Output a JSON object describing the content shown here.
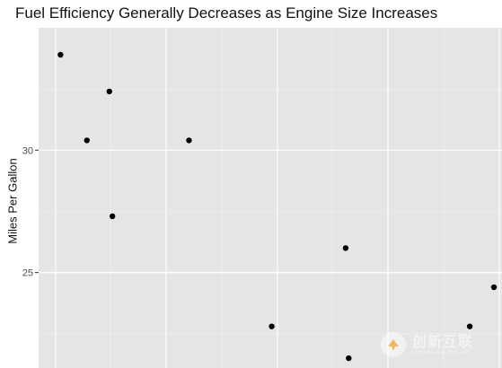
{
  "chart_data": {
    "type": "scatter",
    "title": "Fuel Efficiency Generally Decreases as Engine Size Increases",
    "xlabel": "",
    "ylabel": "Miles Per Gallon",
    "ylim": [
      21.1,
      35.0
    ],
    "xlim": [
      0,
      1
    ],
    "yticks": [
      25,
      30
    ],
    "grid": true,
    "x": [
      0.013,
      0.073,
      0.124,
      0.131,
      0.305,
      0.493,
      0.661,
      0.668,
      0.943,
      0.998
    ],
    "y": [
      33.9,
      30.4,
      32.4,
      27.3,
      30.4,
      22.8,
      26.0,
      21.5,
      22.8,
      24.4
    ],
    "color": "#000000",
    "panel_bg": "#e5e5e5"
  },
  "watermark": {
    "text_cn": "创新互联",
    "text_en": "CHUANG XIN HU LIAN"
  }
}
